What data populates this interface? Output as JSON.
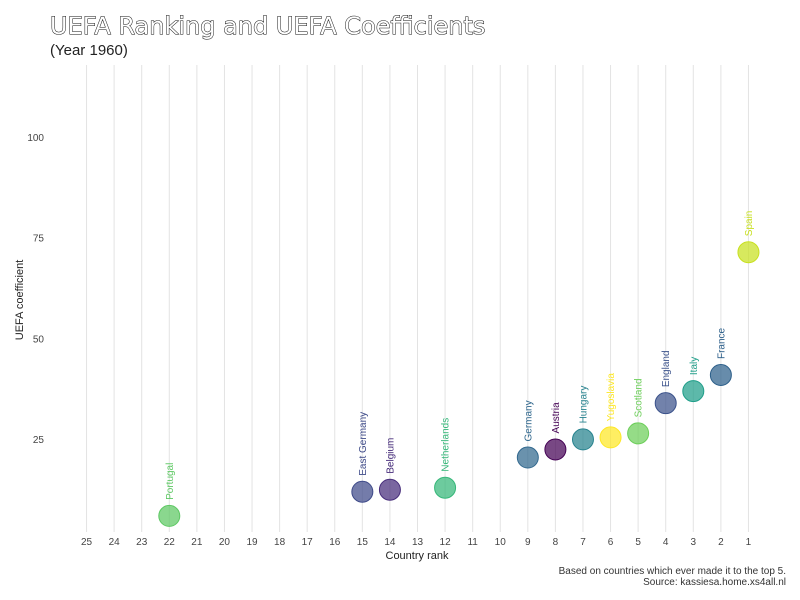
{
  "chart_data": {
    "type": "scatter",
    "title": "UEFA Ranking and UEFA Coefficients",
    "subtitle": "(Year 1960)",
    "xlabel": "Country rank",
    "ylabel": "UEFA coefficient",
    "x_reversed": true,
    "xlim": [
      25.6,
      0.4
    ],
    "ylim": [
      2,
      118
    ],
    "x_ticks": [
      25,
      24,
      23,
      22,
      21,
      20,
      19,
      18,
      17,
      16,
      15,
      14,
      13,
      12,
      11,
      10,
      9,
      8,
      7,
      6,
      5,
      4,
      3,
      2,
      1
    ],
    "y_ticks": [
      25,
      50,
      75,
      100
    ],
    "grid": "vertical",
    "caption": [
      "Based on countries which ever made it to the top 5.",
      "Source: kassiesa.home.xs4all.nl"
    ],
    "points": [
      {
        "country": "Portugal",
        "rank": 22,
        "coefficient": 6,
        "color": "#5DC863"
      },
      {
        "country": "East Germany",
        "rank": 15,
        "coefficient": 12,
        "color": "#3E4A89"
      },
      {
        "country": "Belgium",
        "rank": 14,
        "coefficient": 12.5,
        "color": "#472D7B"
      },
      {
        "country": "Netherlands",
        "rank": 12,
        "coefficient": 13,
        "color": "#35B779"
      },
      {
        "country": "Germany",
        "rank": 9,
        "coefficient": 20.5,
        "color": "#31688E"
      },
      {
        "country": "Austria",
        "rank": 8,
        "coefficient": 22.5,
        "color": "#440154"
      },
      {
        "country": "Hungary",
        "rank": 7,
        "coefficient": 25,
        "color": "#26828E"
      },
      {
        "country": "Yugoslavia",
        "rank": 6,
        "coefficient": 25.5,
        "color": "#FDE725"
      },
      {
        "country": "Scotland",
        "rank": 5,
        "coefficient": 26.5,
        "color": "#6CCE59"
      },
      {
        "country": "England",
        "rank": 4,
        "coefficient": 34,
        "color": "#3B528B"
      },
      {
        "country": "Italy",
        "rank": 3,
        "coefficient": 37,
        "color": "#1F9E89"
      },
      {
        "country": "France",
        "rank": 2,
        "coefficient": 41,
        "color": "#2C5F8A"
      },
      {
        "country": "Spain",
        "rank": 1,
        "coefficient": 71.5,
        "color": "#C8E020"
      }
    ]
  }
}
